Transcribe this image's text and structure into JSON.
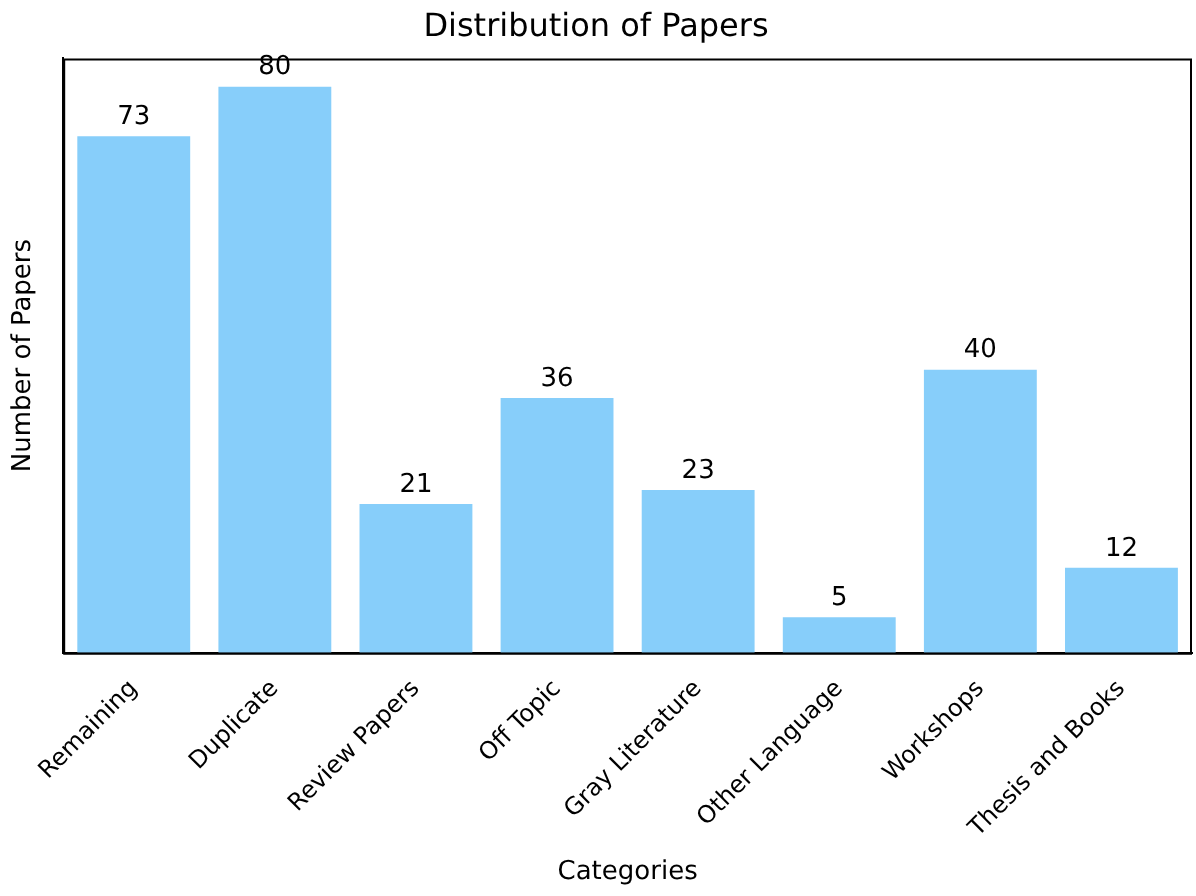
{
  "chart_data": {
    "type": "bar",
    "title": "Distribution of Papers",
    "xlabel": "Categories",
    "ylabel": "Number of Papers",
    "categories": [
      "Remaining",
      "Duplicate",
      "Review Papers",
      "Off Topic",
      "Gray Literature",
      "Other Language",
      "Workshops",
      "Thesis and Books"
    ],
    "values": [
      73,
      80,
      21,
      36,
      23,
      5,
      40,
      12
    ],
    "color": "#87cefa",
    "ylim": [
      0,
      84
    ],
    "data_labels": true,
    "tick_labels": "x",
    "grid": false
  }
}
